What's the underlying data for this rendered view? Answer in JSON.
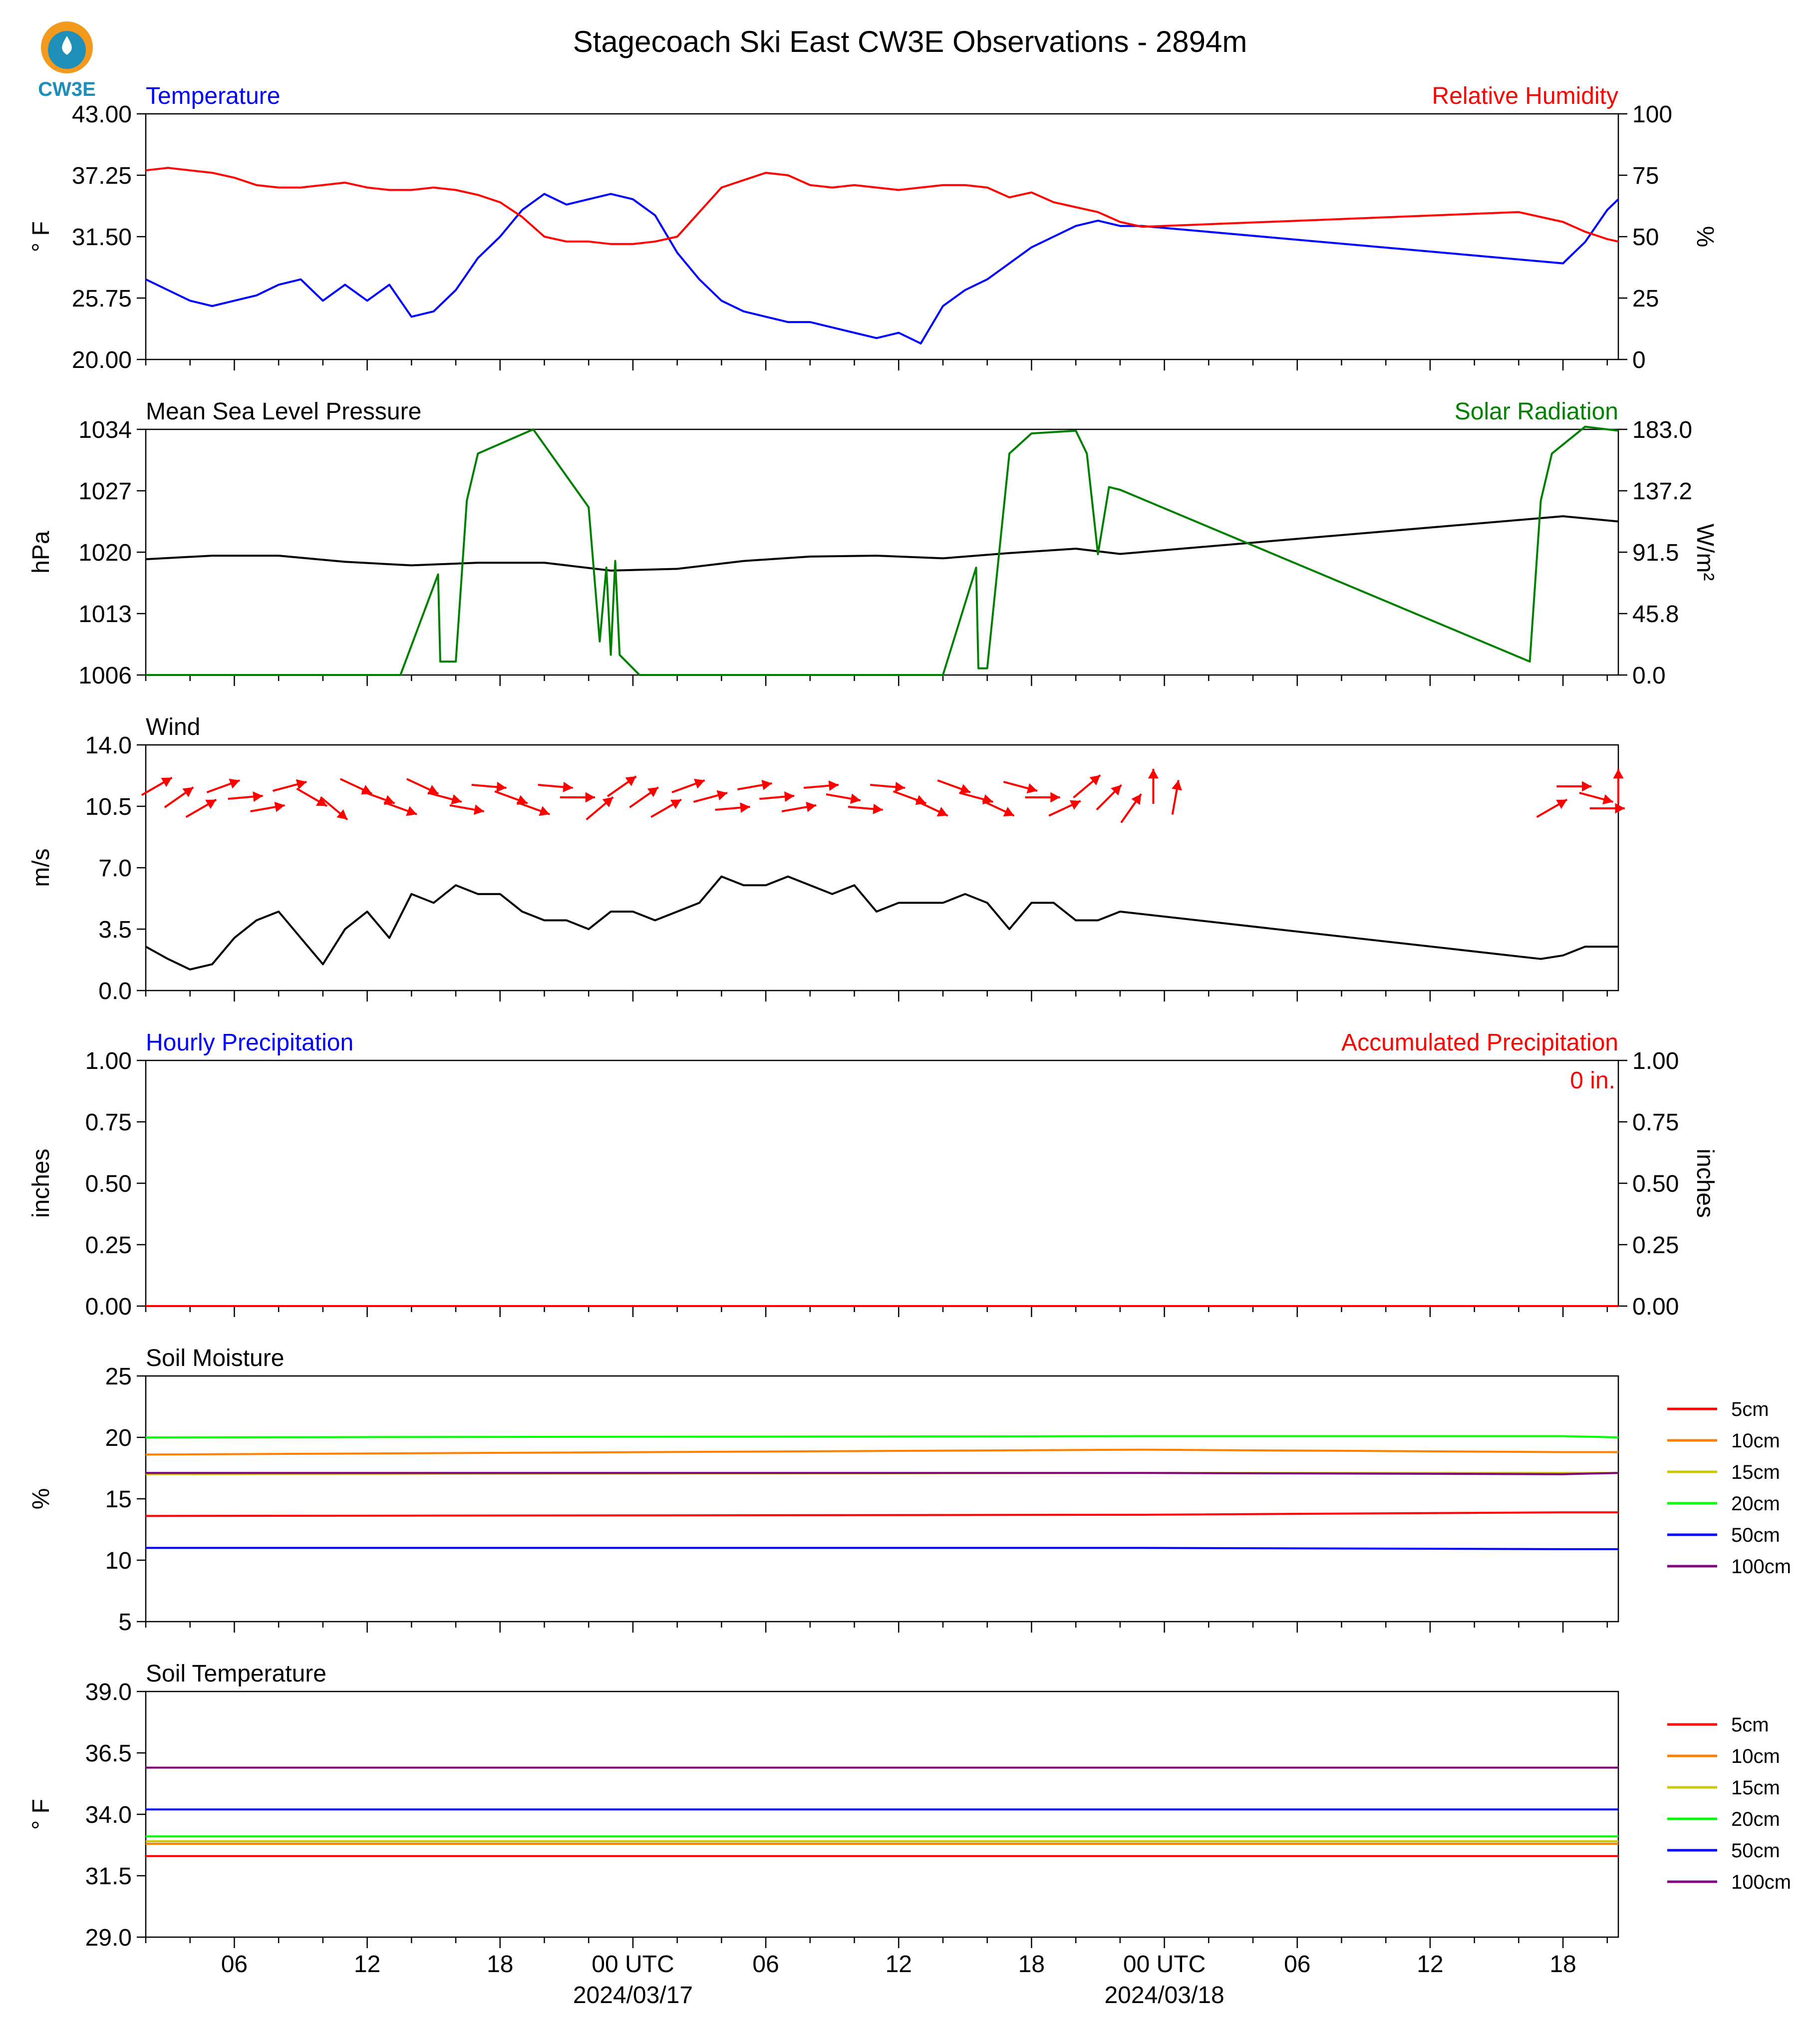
{
  "title": "Stagecoach Ski East CW3E Observations - 2894m",
  "logo": {
    "text": "CW3E",
    "icon": "cw3e-logo-icon"
  },
  "x_axis": {
    "tick_labels": [
      "06",
      "12",
      "18",
      "00 UTC",
      "06",
      "12",
      "18",
      "00 UTC",
      "06",
      "12",
      "18"
    ],
    "date_labels": [
      "2024/03/17",
      "2024/03/18"
    ]
  },
  "chart_data": [
    {
      "type": "line",
      "title_left": "Temperature",
      "title_right": "Relative Humidity",
      "ylabel": "° F",
      "ylabel_right": "%",
      "ylim": [
        20,
        43
      ],
      "yticks": [
        "43.00",
        "37.25",
        "31.50",
        "25.75",
        "20.00"
      ],
      "ylim_right": [
        0,
        100
      ],
      "yticks_right": [
        "100",
        "75",
        "50",
        "25",
        "0"
      ],
      "x_unit": "hours since 2024-03-16 02 UTC",
      "series": [
        {
          "name": "Temperature",
          "color": "#0000ff",
          "axis": "left",
          "x": [
            0,
            1,
            2,
            3,
            4,
            5,
            6,
            7,
            8,
            9,
            10,
            11,
            12,
            13,
            14,
            15,
            16,
            17,
            18,
            19,
            20,
            21,
            22,
            23,
            24,
            25,
            26,
            27,
            28,
            29,
            30,
            31,
            32,
            33,
            34,
            35,
            36,
            37,
            38,
            39,
            40,
            41,
            42,
            43,
            44,
            45,
            64,
            65,
            66,
            66.5
          ],
          "y": [
            27.5,
            26.5,
            25.5,
            25,
            25.5,
            26,
            27,
            27.5,
            25.5,
            27,
            25.5,
            27,
            24,
            24.5,
            26.5,
            29.5,
            31.5,
            34,
            35.5,
            34.5,
            35,
            35.5,
            35,
            33.5,
            30,
            27.5,
            25.5,
            24.5,
            24,
            23.5,
            23.5,
            23,
            22.5,
            22,
            22.5,
            21.5,
            25,
            26.5,
            27.5,
            29,
            30.5,
            31.5,
            32.5,
            33,
            32.5,
            32.5,
            29,
            31,
            34,
            35
          ]
        },
        {
          "name": "Relative Humidity",
          "color": "#ff0000",
          "axis": "right",
          "x": [
            0,
            1,
            2,
            3,
            4,
            5,
            6,
            7,
            8,
            9,
            10,
            11,
            12,
            13,
            14,
            15,
            16,
            17,
            18,
            19,
            20,
            21,
            22,
            23,
            24,
            25,
            26,
            27,
            28,
            29,
            30,
            31,
            32,
            33,
            34,
            35,
            36,
            37,
            38,
            39,
            40,
            41,
            42,
            43,
            44,
            45,
            62,
            64,
            65,
            66,
            66.5
          ],
          "y": [
            77,
            78,
            77,
            76,
            74,
            71,
            70,
            70,
            71,
            72,
            70,
            69,
            69,
            70,
            69,
            67,
            64,
            58,
            50,
            48,
            48,
            47,
            47,
            48,
            50,
            60,
            70,
            73,
            76,
            75,
            71,
            70,
            71,
            70,
            69,
            70,
            71,
            71,
            70,
            66,
            68,
            64,
            62,
            60,
            56,
            54,
            60,
            56,
            52,
            49,
            48
          ]
        }
      ]
    },
    {
      "type": "line",
      "title_left": "Mean Sea Level Pressure",
      "title_right": "Solar Radiation",
      "ylabel": "hPa",
      "ylabel_right": "W/m²",
      "ylim": [
        1006,
        1034
      ],
      "yticks": [
        "1034",
        "1027",
        "1020",
        "1013",
        "1006"
      ],
      "ylim_right": [
        0,
        183
      ],
      "yticks_right": [
        "183.0",
        "137.2",
        "91.5",
        "45.8",
        "0.0"
      ],
      "x_unit": "hours since 2024-03-16 02 UTC",
      "series": [
        {
          "name": "Mean Sea Level Pressure",
          "color": "#000000",
          "axis": "left",
          "x": [
            0,
            3,
            6,
            9,
            12,
            15,
            18,
            21,
            24,
            27,
            30,
            33,
            36,
            39,
            42,
            44,
            64,
            66.5
          ],
          "y": [
            1019.2,
            1019.6,
            1019.6,
            1018.9,
            1018.5,
            1018.8,
            1018.8,
            1017.9,
            1018.1,
            1019.0,
            1019.5,
            1019.6,
            1019.3,
            1019.9,
            1020.4,
            1019.8,
            1024.1,
            1023.5
          ]
        },
        {
          "name": "Solar Radiation",
          "color": "#008000",
          "axis": "right",
          "x": [
            0,
            11.5,
            13.2,
            13.3,
            14,
            14.5,
            15,
            17.5,
            20,
            20.5,
            20.8,
            21,
            21.2,
            21.4,
            22.3,
            36,
            37.5,
            37.6,
            38,
            39,
            40,
            42,
            42.5,
            43,
            43.5,
            44,
            62.5,
            63,
            63.5,
            65,
            66.5
          ],
          "y": [
            0,
            0,
            75,
            10,
            10,
            130,
            165,
            183,
            125,
            25,
            80,
            15,
            85,
            15,
            0,
            0,
            80,
            5,
            5,
            165,
            180,
            182,
            165,
            90,
            140,
            138,
            10,
            130,
            165,
            185,
            182
          ]
        }
      ]
    },
    {
      "type": "line",
      "title_left": "Wind",
      "ylabel": "m/s",
      "ylim": [
        0,
        14
      ],
      "yticks": [
        "14.0",
        "10.5",
        "7.0",
        "3.5",
        "0.0"
      ],
      "x_unit": "hours since 2024-03-16 02 UTC",
      "series": [
        {
          "name": "Wind",
          "color": "#000000",
          "x": [
            0,
            1,
            2,
            3,
            4,
            5,
            6,
            7,
            8,
            9,
            10,
            11,
            12,
            13,
            14,
            15,
            16,
            17,
            18,
            19,
            20,
            21,
            22,
            23,
            24,
            25,
            26,
            27,
            28,
            29,
            30,
            31,
            32,
            33,
            34,
            35,
            36,
            37,
            38,
            39,
            40,
            41,
            42,
            43,
            44,
            63,
            64,
            65,
            66,
            66.5
          ],
          "y": [
            2.5,
            1.8,
            1.2,
            1.5,
            3.0,
            4.0,
            4.5,
            3.0,
            1.5,
            3.5,
            4.5,
            3.0,
            5.5,
            5.0,
            6.0,
            5.5,
            5.5,
            4.5,
            4.0,
            4.0,
            3.5,
            4.5,
            4.5,
            4.0,
            4.5,
            5.0,
            6.5,
            6.0,
            6.0,
            6.5,
            6.0,
            5.5,
            6.0,
            4.5,
            5.0,
            5.0,
            5.0,
            5.5,
            5.0,
            3.5,
            5.0,
            5.0,
            4.0,
            4.0,
            4.5,
            1.8,
            2.0,
            2.5,
            2.5,
            2.5
          ]
        }
      ],
      "wind_barbs": [
        {
          "x": 0.5,
          "dir": 240
        },
        {
          "x": 1.5,
          "dir": 235
        },
        {
          "x": 2.5,
          "dir": 240
        },
        {
          "x": 3.5,
          "dir": 250
        },
        {
          "x": 4.5,
          "dir": 265
        },
        {
          "x": 5.5,
          "dir": 260
        },
        {
          "x": 6.5,
          "dir": 255
        },
        {
          "x": 7.5,
          "dir": 300
        },
        {
          "x": 8.5,
          "dir": 310
        },
        {
          "x": 9.5,
          "dir": 295
        },
        {
          "x": 10.5,
          "dir": 290
        },
        {
          "x": 11.5,
          "dir": 290
        },
        {
          "x": 12.5,
          "dir": 295
        },
        {
          "x": 13.5,
          "dir": 285
        },
        {
          "x": 14.5,
          "dir": 280
        },
        {
          "x": 15.5,
          "dir": 275
        },
        {
          "x": 16.5,
          "dir": 290
        },
        {
          "x": 17.5,
          "dir": 290
        },
        {
          "x": 18.5,
          "dir": 275
        },
        {
          "x": 19.5,
          "dir": 270
        },
        {
          "x": 20.5,
          "dir": 230
        },
        {
          "x": 21.5,
          "dir": 235
        },
        {
          "x": 22.5,
          "dir": 235
        },
        {
          "x": 23.5,
          "dir": 240
        },
        {
          "x": 24.5,
          "dir": 250
        },
        {
          "x": 25.5,
          "dir": 255
        },
        {
          "x": 26.5,
          "dir": 265
        },
        {
          "x": 27.5,
          "dir": 260
        },
        {
          "x": 28.5,
          "dir": 265
        },
        {
          "x": 29.5,
          "dir": 260
        },
        {
          "x": 30.5,
          "dir": 265
        },
        {
          "x": 31.5,
          "dir": 280
        },
        {
          "x": 32.5,
          "dir": 275
        },
        {
          "x": 33.5,
          "dir": 275
        },
        {
          "x": 34.5,
          "dir": 290
        },
        {
          "x": 35.5,
          "dir": 295
        },
        {
          "x": 36.5,
          "dir": 290
        },
        {
          "x": 37.5,
          "dir": 285
        },
        {
          "x": 38.5,
          "dir": 295
        },
        {
          "x": 39.5,
          "dir": 285
        },
        {
          "x": 40.5,
          "dir": 270
        },
        {
          "x": 41.5,
          "dir": 245
        },
        {
          "x": 42.5,
          "dir": 230
        },
        {
          "x": 43.5,
          "dir": 225
        },
        {
          "x": 44.5,
          "dir": 215
        },
        {
          "x": 45.5,
          "dir": 180
        },
        {
          "x": 46.5,
          "dir": 190
        },
        {
          "x": 63.5,
          "dir": 240
        },
        {
          "x": 64.5,
          "dir": 270
        },
        {
          "x": 65.5,
          "dir": 285
        },
        {
          "x": 66.0,
          "dir": 270
        },
        {
          "x": 66.5,
          "dir": 180
        }
      ]
    },
    {
      "type": "line",
      "title_left": "Hourly Precipitation",
      "title_right": "Accumulated Precipitation",
      "annotation": "0 in.",
      "ylabel": "inches",
      "ylabel_right": "inches",
      "ylim": [
        0,
        1
      ],
      "yticks": [
        "1.00",
        "0.75",
        "0.50",
        "0.25",
        "0.00"
      ],
      "yticks_right": [
        "1.00",
        "0.75",
        "0.50",
        "0.25",
        "0.00"
      ],
      "x_unit": "hours since 2024-03-16 02 UTC",
      "series": [
        {
          "name": "Hourly Precipitation",
          "color": "#0000ff",
          "x": [
            0,
            66.5
          ],
          "y": [
            0,
            0
          ]
        },
        {
          "name": "Accumulated Precipitation",
          "color": "#ff0000",
          "x": [
            0,
            66.5
          ],
          "y": [
            0,
            0
          ]
        }
      ]
    },
    {
      "type": "line",
      "title_left": "Soil Moisture",
      "ylabel": "%",
      "ylim": [
        5,
        25
      ],
      "yticks": [
        "25",
        "20",
        "15",
        "10",
        "5"
      ],
      "legend_position": "right",
      "x_unit": "hours since 2024-03-16 02 UTC",
      "series": [
        {
          "name": "5cm",
          "color": "#ff0000",
          "x": [
            0,
            45,
            64,
            66.5
          ],
          "y": [
            13.6,
            13.7,
            13.9,
            13.9
          ]
        },
        {
          "name": "10cm",
          "color": "#ff8000",
          "x": [
            0,
            45,
            64,
            66.5
          ],
          "y": [
            18.6,
            19.0,
            18.8,
            18.8
          ]
        },
        {
          "name": "15cm",
          "color": "#c8c800",
          "x": [
            0,
            45,
            64,
            66.5
          ],
          "y": [
            17.0,
            17.1,
            17.1,
            17.1
          ]
        },
        {
          "name": "20cm",
          "color": "#00ff00",
          "x": [
            0,
            45,
            64,
            66.5
          ],
          "y": [
            20.0,
            20.1,
            20.1,
            20.0
          ]
        },
        {
          "name": "50cm",
          "color": "#0000ff",
          "x": [
            0,
            45,
            64,
            66.5
          ],
          "y": [
            11.0,
            11.0,
            10.9,
            10.9
          ]
        },
        {
          "name": "100cm",
          "color": "#800080",
          "x": [
            0,
            45,
            64,
            66.5
          ],
          "y": [
            17.1,
            17.1,
            17.0,
            17.1
          ]
        }
      ]
    },
    {
      "type": "line",
      "title_left": "Soil Temperature",
      "ylabel": "° F",
      "ylim": [
        29,
        39
      ],
      "yticks": [
        "39.0",
        "36.5",
        "34.0",
        "31.5",
        "29.0"
      ],
      "legend_position": "right",
      "x_unit": "hours since 2024-03-16 02 UTC",
      "series": [
        {
          "name": "5cm",
          "color": "#ff0000",
          "x": [
            0,
            66.5
          ],
          "y": [
            32.3,
            32.3
          ]
        },
        {
          "name": "10cm",
          "color": "#ff8000",
          "x": [
            0,
            66.5
          ],
          "y": [
            32.8,
            32.8
          ]
        },
        {
          "name": "15cm",
          "color": "#c8c800",
          "x": [
            0,
            66.5
          ],
          "y": [
            32.9,
            32.9
          ]
        },
        {
          "name": "20cm",
          "color": "#00ff00",
          "x": [
            0,
            66.5
          ],
          "y": [
            33.1,
            33.1
          ]
        },
        {
          "name": "50cm",
          "color": "#0000ff",
          "x": [
            0,
            66.5
          ],
          "y": [
            34.2,
            34.2
          ]
        },
        {
          "name": "100cm",
          "color": "#800080",
          "x": [
            0,
            66.5
          ],
          "y": [
            35.9,
            35.9
          ]
        }
      ]
    }
  ]
}
